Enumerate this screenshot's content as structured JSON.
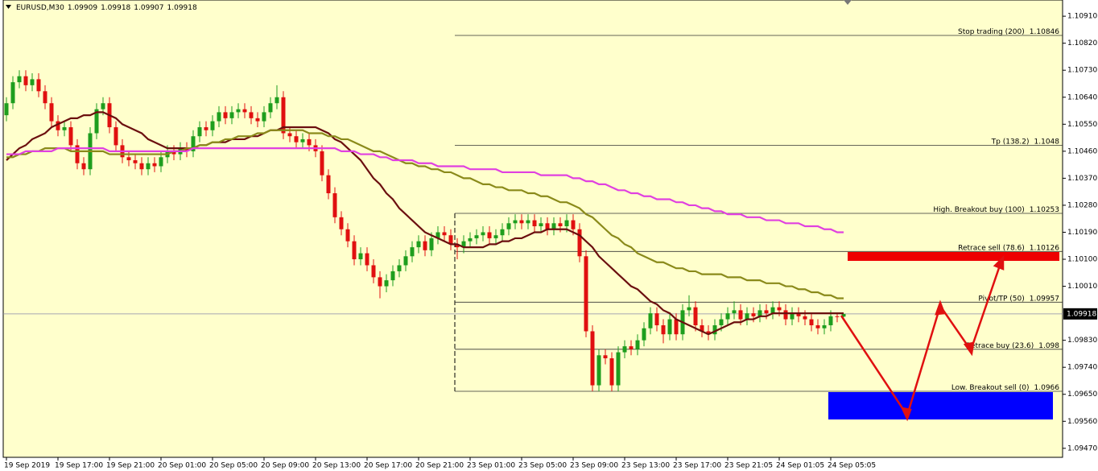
{
  "chart_data": {
    "type": "candlestick",
    "title": "EURUSD,M30",
    "up_color": "#1e9e1e",
    "down_color": "#e01010",
    "ylim": [
      1.0944,
      1.10964
    ],
    "yticks": [
      {
        "value": 1.1091,
        "label": "1.10910"
      },
      {
        "value": 1.1082,
        "label": "1.10820"
      },
      {
        "value": 1.1073,
        "label": "1.10730"
      },
      {
        "value": 1.1064,
        "label": "1.10640"
      },
      {
        "value": 1.1055,
        "label": "1.10550"
      },
      {
        "value": 1.1046,
        "label": "1.10460"
      },
      {
        "value": 1.1037,
        "label": "1.10370"
      },
      {
        "value": 1.1028,
        "label": "1.10280"
      },
      {
        "value": 1.1019,
        "label": "1.10190"
      },
      {
        "value": 1.101,
        "label": "1.10100"
      },
      {
        "value": 1.1001,
        "label": "1.10010"
      },
      {
        "value": 1.0983,
        "label": "1.09830"
      },
      {
        "value": 1.0974,
        "label": "1.09740"
      },
      {
        "value": 1.0965,
        "label": "1.09650"
      },
      {
        "value": 1.0956,
        "label": "1.09560"
      },
      {
        "value": 1.0947,
        "label": "1.09470"
      }
    ],
    "categories": [
      "19 Sep 2019",
      null,
      null,
      null,
      null,
      null,
      null,
      null,
      "19 Sep 17:00",
      null,
      null,
      null,
      null,
      null,
      null,
      null,
      "19 Sep 21:00",
      null,
      null,
      null,
      null,
      null,
      null,
      null,
      "20 Sep 01:00",
      null,
      null,
      null,
      null,
      null,
      null,
      null,
      "20 Sep 05:00",
      null,
      null,
      null,
      null,
      null,
      null,
      null,
      "20 Sep 09:00",
      null,
      null,
      null,
      null,
      null,
      null,
      null,
      "20 Sep 13:00",
      null,
      null,
      null,
      null,
      null,
      null,
      null,
      "20 Sep 17:00",
      null,
      null,
      null,
      null,
      null,
      null,
      null,
      "20 Sep 21:00",
      null,
      null,
      null,
      null,
      null,
      null,
      null,
      "23 Sep 01:00",
      null,
      null,
      null,
      null,
      null,
      null,
      null,
      "23 Sep 05:00",
      null,
      null,
      null,
      null,
      null,
      null,
      null,
      "23 Sep 09:00",
      null,
      null,
      null,
      null,
      null,
      null,
      null,
      "23 Sep 13:00",
      null,
      null,
      null,
      null,
      null,
      null,
      null,
      "23 Sep 17:00",
      null,
      null,
      null,
      null,
      null,
      null,
      null,
      "23 Sep 21:05",
      null,
      null,
      null,
      null,
      null,
      null,
      null,
      "24 Sep 01:05",
      null,
      null,
      null,
      null,
      null,
      null,
      null,
      "24 Sep 05:05",
      null,
      null
    ],
    "open": [
      1.1058,
      1.1062,
      1.1069,
      1.1071,
      1.1068,
      1.107,
      1.1066,
      1.1062,
      1.1056,
      1.1053,
      1.1054,
      1.1048,
      1.1042,
      1.104,
      1.1052,
      1.106,
      1.1062,
      1.1054,
      1.1048,
      1.1044,
      1.1043,
      1.1042,
      1.104,
      1.1042,
      1.1041,
      1.1044,
      1.1046,
      1.1045,
      1.1047,
      1.1046,
      1.1051,
      1.1054,
      1.1053,
      1.1056,
      1.1059,
      1.1057,
      1.1059,
      1.106,
      1.1059,
      1.1057,
      1.1056,
      1.1059,
      1.1062,
      1.1064,
      1.1052,
      1.1051,
      1.1049,
      1.105,
      1.1048,
      1.1046,
      1.1038,
      1.1032,
      1.1024,
      1.102,
      1.1016,
      1.101,
      1.1012,
      1.1008,
      1.1004,
      1.1001,
      1.1003,
      1.1006,
      1.1008,
      1.1011,
      1.1014,
      1.1016,
      1.1013,
      1.1017,
      1.1019,
      1.1018,
      1.1015,
      1.1014,
      1.1016,
      1.1017,
      1.1018,
      1.1019,
      1.1017,
      1.1018,
      1.102,
      1.1022,
      1.1023,
      1.1022,
      1.1023,
      1.1021,
      1.1022,
      1.102,
      1.1022,
      1.1021,
      1.1023,
      1.102,
      1.1011,
      1.0986,
      1.0968,
      1.0978,
      1.0977,
      1.0968,
      1.0979,
      1.0981,
      1.098,
      1.0983,
      1.0987,
      1.0992,
      1.0988,
      1.0985,
      1.099,
      1.0985,
      1.0993,
      1.0994,
      1.0988,
      1.0986,
      1.0985,
      1.0988,
      1.099,
      1.0992,
      1.0993,
      1.099,
      1.0992,
      1.0991,
      1.0993,
      1.0992,
      1.0994,
      1.0993,
      1.099,
      1.0992,
      1.0991,
      1.099,
      1.0988,
      1.0987,
      1.0988,
      1.0991,
      1.09909
    ],
    "high": [
      1.1064,
      1.1071,
      1.1073,
      1.1073,
      1.1072,
      1.1072,
      1.1068,
      1.1064,
      1.1058,
      1.1056,
      1.1056,
      1.105,
      1.1044,
      1.1054,
      1.1062,
      1.1064,
      1.1064,
      1.1056,
      1.105,
      1.1046,
      1.1045,
      1.1044,
      1.1044,
      1.1044,
      1.1046,
      1.1048,
      1.1048,
      1.1049,
      1.1049,
      1.1053,
      1.1056,
      1.1056,
      1.1058,
      1.1061,
      1.1061,
      1.1061,
      1.1062,
      1.1062,
      1.1061,
      1.1059,
      1.1061,
      1.1064,
      1.1068,
      1.1066,
      1.1054,
      1.1053,
      1.1052,
      1.1052,
      1.105,
      1.1048,
      1.104,
      1.1034,
      1.1026,
      1.1022,
      1.1018,
      1.1014,
      1.1014,
      1.101,
      1.1006,
      1.1005,
      1.1008,
      1.101,
      1.1013,
      1.1016,
      1.1018,
      1.1018,
      1.1019,
      1.1021,
      1.1021,
      1.102,
      1.1017,
      1.1018,
      1.1019,
      1.102,
      1.1021,
      1.1021,
      1.102,
      1.1022,
      1.1024,
      1.1025,
      1.1025,
      1.1025,
      1.1025,
      1.1024,
      1.1024,
      1.1024,
      1.1024,
      1.1025,
      1.1025,
      1.1022,
      1.1013,
      1.0988,
      1.098,
      1.098,
      1.0979,
      1.0981,
      1.0983,
      1.0983,
      1.0985,
      1.0989,
      1.0994,
      1.0994,
      1.099,
      1.0992,
      1.0992,
      1.0995,
      1.0998,
      1.0996,
      1.099,
      1.0988,
      1.099,
      1.0992,
      1.0994,
      1.0996,
      1.0995,
      1.0994,
      1.0994,
      1.0995,
      1.0995,
      1.0996,
      1.0996,
      1.0995,
      1.0994,
      1.0994,
      1.0993,
      1.0992,
      1.099,
      1.099,
      1.0993,
      1.0992,
      1.09918
    ],
    "low": [
      1.1056,
      1.106,
      1.1067,
      1.1066,
      1.1066,
      1.1064,
      1.106,
      1.1054,
      1.1051,
      1.1051,
      1.1046,
      1.104,
      1.1038,
      1.1038,
      1.105,
      1.1058,
      1.1052,
      1.1046,
      1.1042,
      1.1041,
      1.104,
      1.1038,
      1.1038,
      1.1039,
      1.1039,
      1.1042,
      1.1043,
      1.1043,
      1.1044,
      1.1044,
      1.1049,
      1.1051,
      1.1051,
      1.1054,
      1.1055,
      1.1055,
      1.1057,
      1.1057,
      1.1055,
      1.1054,
      1.1054,
      1.1057,
      1.106,
      1.105,
      1.1049,
      1.1047,
      1.1047,
      1.1046,
      1.1044,
      1.1036,
      1.103,
      1.1022,
      1.1018,
      1.1014,
      1.1008,
      1.1008,
      1.1006,
      1.1002,
      1.0997,
      1.0999,
      1.1001,
      1.1004,
      1.1006,
      1.1009,
      1.1012,
      1.1011,
      1.1011,
      1.1015,
      1.1016,
      1.1013,
      1.101,
      1.1012,
      1.1014,
      1.1015,
      1.1016,
      1.1015,
      1.1015,
      1.1016,
      1.1018,
      1.102,
      1.102,
      1.102,
      1.1019,
      1.1019,
      1.1018,
      1.1018,
      1.1019,
      1.1019,
      1.1018,
      1.1009,
      1.0984,
      1.0966,
      1.0966,
      1.0975,
      1.0966,
      1.0966,
      1.0977,
      1.0978,
      1.0978,
      1.0981,
      1.0985,
      1.0986,
      1.0982,
      1.0983,
      1.0983,
      1.0983,
      1.0991,
      1.0986,
      1.0984,
      1.0983,
      1.0983,
      1.0986,
      1.0988,
      1.099,
      1.0988,
      1.0988,
      1.0989,
      1.0989,
      1.099,
      1.099,
      1.0991,
      1.0988,
      1.0988,
      1.0989,
      1.0988,
      1.0986,
      1.0985,
      1.0985,
      1.0986,
      1.0989,
      1.09907
    ],
    "close": [
      1.1062,
      1.1069,
      1.1071,
      1.1068,
      1.107,
      1.1066,
      1.1062,
      1.1056,
      1.1053,
      1.1054,
      1.1048,
      1.1042,
      1.104,
      1.1052,
      1.106,
      1.1062,
      1.1054,
      1.1048,
      1.1044,
      1.1043,
      1.1042,
      1.104,
      1.1042,
      1.1041,
      1.1044,
      1.1046,
      1.1045,
      1.1047,
      1.1046,
      1.1051,
      1.1054,
      1.1053,
      1.1056,
      1.1059,
      1.1057,
      1.1059,
      1.106,
      1.1059,
      1.1057,
      1.1056,
      1.1059,
      1.1062,
      1.1064,
      1.1052,
      1.1051,
      1.1049,
      1.105,
      1.1048,
      1.1046,
      1.1038,
      1.1032,
      1.1024,
      1.102,
      1.1016,
      1.101,
      1.1012,
      1.1008,
      1.1004,
      1.1001,
      1.1003,
      1.1006,
      1.1008,
      1.1011,
      1.1014,
      1.1016,
      1.1013,
      1.1017,
      1.1019,
      1.1018,
      1.1015,
      1.1014,
      1.1016,
      1.1017,
      1.1018,
      1.1019,
      1.1017,
      1.1018,
      1.102,
      1.1022,
      1.1023,
      1.1022,
      1.1023,
      1.1021,
      1.1022,
      1.102,
      1.1022,
      1.1021,
      1.1023,
      1.102,
      1.1011,
      1.0986,
      1.0968,
      1.0978,
      1.0977,
      1.0968,
      1.0979,
      1.0981,
      1.098,
      1.0983,
      1.0987,
      1.0992,
      1.0988,
      1.0985,
      1.099,
      1.0985,
      1.0993,
      1.0994,
      1.0988,
      1.0986,
      1.0985,
      1.0988,
      1.099,
      1.0992,
      1.0993,
      1.099,
      1.0992,
      1.0991,
      1.0993,
      1.0992,
      1.0994,
      1.0993,
      1.099,
      1.0992,
      1.0991,
      1.099,
      1.0988,
      1.0987,
      1.0988,
      1.0991,
      1.09909,
      1.09918
    ],
    "series": [
      {
        "color": "#6b0f0f",
        "values": [
          1.1043,
          1.1045,
          1.1047,
          1.1048,
          1.105,
          1.1051,
          1.1052,
          1.1054,
          1.1055,
          1.1056,
          1.1057,
          1.1057,
          1.1058,
          1.1058,
          1.1059,
          1.1059,
          1.1058,
          1.1057,
          1.1055,
          1.1054,
          1.1053,
          1.1052,
          1.105,
          1.1049,
          1.1048,
          1.1047,
          1.1047,
          1.1047,
          1.1047,
          1.1047,
          1.1048,
          1.1048,
          1.1049,
          1.1049,
          1.1049,
          1.105,
          1.105,
          1.105,
          1.1051,
          1.1051,
          1.1052,
          1.1053,
          1.1053,
          1.1054,
          1.1054,
          1.1054,
          1.1054,
          1.1054,
          1.1054,
          1.1053,
          1.1052,
          1.105,
          1.1049,
          1.1047,
          1.1045,
          1.1043,
          1.104,
          1.1037,
          1.1035,
          1.1032,
          1.103,
          1.1027,
          1.1025,
          1.1023,
          1.1021,
          1.1019,
          1.1018,
          1.1017,
          1.1016,
          1.1015,
          1.1015,
          1.1014,
          1.1014,
          1.1014,
          1.1014,
          1.1015,
          1.1015,
          1.1016,
          1.1016,
          1.1017,
          1.1017,
          1.1018,
          1.1019,
          1.1019,
          1.102,
          1.102,
          1.102,
          1.102,
          1.1019,
          1.1018,
          1.1016,
          1.1014,
          1.1011,
          1.1009,
          1.1007,
          1.1005,
          1.1003,
          1.1001,
          1.1,
          1.0998,
          1.0996,
          1.0995,
          1.0993,
          1.0992,
          1.099,
          1.0989,
          1.0988,
          1.0987,
          1.0986,
          1.0985,
          1.0986,
          1.0987,
          1.0988,
          1.0989,
          1.0989,
          1.099,
          1.099,
          1.0991,
          1.0991,
          1.0992,
          1.0992,
          1.0992,
          1.0992,
          1.0992,
          1.0992,
          1.0992,
          1.0992,
          1.0992,
          1.0992,
          1.0992,
          1.0992
        ]
      },
      {
        "color": "#8a8a1a",
        "values": [
          1.1044,
          1.1044,
          1.1045,
          1.1045,
          1.1046,
          1.1046,
          1.1047,
          1.1047,
          1.1047,
          1.1047,
          1.1046,
          1.1046,
          1.1046,
          1.1046,
          1.1046,
          1.1046,
          1.1045,
          1.1045,
          1.1045,
          1.1045,
          1.1045,
          1.1045,
          1.1045,
          1.1045,
          1.1045,
          1.1045,
          1.1046,
          1.1046,
          1.1047,
          1.1047,
          1.1048,
          1.1048,
          1.1049,
          1.1049,
          1.105,
          1.105,
          1.1051,
          1.1051,
          1.1051,
          1.1052,
          1.1052,
          1.1053,
          1.1053,
          1.1053,
          1.1053,
          1.1053,
          1.1053,
          1.1052,
          1.1052,
          1.1052,
          1.1051,
          1.1051,
          1.105,
          1.105,
          1.1049,
          1.1048,
          1.1047,
          1.1046,
          1.1046,
          1.1045,
          1.1044,
          1.1043,
          1.1042,
          1.1042,
          1.1041,
          1.1041,
          1.104,
          1.104,
          1.1039,
          1.1039,
          1.1038,
          1.1037,
          1.1037,
          1.1036,
          1.1035,
          1.1035,
          1.1034,
          1.1034,
          1.1033,
          1.1033,
          1.1033,
          1.1032,
          1.1032,
          1.1031,
          1.1031,
          1.103,
          1.1029,
          1.1029,
          1.1028,
          1.1027,
          1.1025,
          1.1024,
          1.1022,
          1.102,
          1.1018,
          1.1017,
          1.1015,
          1.1014,
          1.1012,
          1.1011,
          1.101,
          1.1009,
          1.1009,
          1.1008,
          1.1007,
          1.1007,
          1.1006,
          1.1006,
          1.1005,
          1.1005,
          1.1005,
          1.1005,
          1.1004,
          1.1004,
          1.1004,
          1.1003,
          1.1003,
          1.1003,
          1.1002,
          1.1002,
          1.1002,
          1.1001,
          1.1001,
          1.1,
          1.1,
          1.0999,
          1.0999,
          1.0998,
          1.0998,
          1.0997,
          1.0997
        ]
      },
      {
        "color": "#e040e0",
        "values": [
          1.1045,
          1.1045,
          1.1045,
          1.1046,
          1.1046,
          1.1046,
          1.1046,
          1.1046,
          1.1047,
          1.1047,
          1.1047,
          1.1047,
          1.1047,
          1.1047,
          1.1047,
          1.1047,
          1.1046,
          1.1046,
          1.1046,
          1.1046,
          1.1046,
          1.1046,
          1.1046,
          1.1046,
          1.1046,
          1.1046,
          1.1046,
          1.1046,
          1.1046,
          1.1047,
          1.1047,
          1.1047,
          1.1047,
          1.1047,
          1.1047,
          1.1047,
          1.1047,
          1.1047,
          1.1047,
          1.1047,
          1.1047,
          1.1047,
          1.1047,
          1.1047,
          1.1047,
          1.1047,
          1.1047,
          1.1047,
          1.1047,
          1.1047,
          1.1047,
          1.1047,
          1.1046,
          1.1046,
          1.1046,
          1.1045,
          1.1045,
          1.1045,
          1.1044,
          1.1044,
          1.1043,
          1.1043,
          1.1043,
          1.1043,
          1.1042,
          1.1042,
          1.1042,
          1.1041,
          1.1041,
          1.1041,
          1.1041,
          1.1041,
          1.104,
          1.104,
          1.104,
          1.104,
          1.104,
          1.1039,
          1.1039,
          1.1039,
          1.1039,
          1.1039,
          1.1039,
          1.1038,
          1.1038,
          1.1038,
          1.1038,
          1.1038,
          1.1037,
          1.1037,
          1.1036,
          1.1036,
          1.1035,
          1.1035,
          1.1034,
          1.1033,
          1.1033,
          1.1032,
          1.1032,
          1.1031,
          1.1031,
          1.103,
          1.103,
          1.103,
          1.1029,
          1.1029,
          1.1028,
          1.1028,
          1.1027,
          1.1027,
          1.1026,
          1.1026,
          1.1025,
          1.1025,
          1.1025,
          1.1024,
          1.1024,
          1.1024,
          1.1023,
          1.1023,
          1.1023,
          1.1022,
          1.1022,
          1.1022,
          1.1021,
          1.1021,
          1.1021,
          1.102,
          1.102,
          1.1019,
          1.1019
        ]
      }
    ],
    "levels": [
      {
        "name": "Stop trading (200)",
        "value": 1.10846
      },
      {
        "name": "Tp (138.2)",
        "value": 1.1048
      },
      {
        "name": "High. Breakout buy (100)",
        "value": 1.10253
      },
      {
        "name": "Retrace sell (78.6)",
        "value": 1.10126
      },
      {
        "name": "Pivot/TP (50)",
        "value": 1.09957
      },
      {
        "name": "Retrace buy (23.6)",
        "value": 1.098
      },
      {
        "name": "Low. Breakout sell (0)",
        "value": 1.0966
      }
    ]
  }
}
